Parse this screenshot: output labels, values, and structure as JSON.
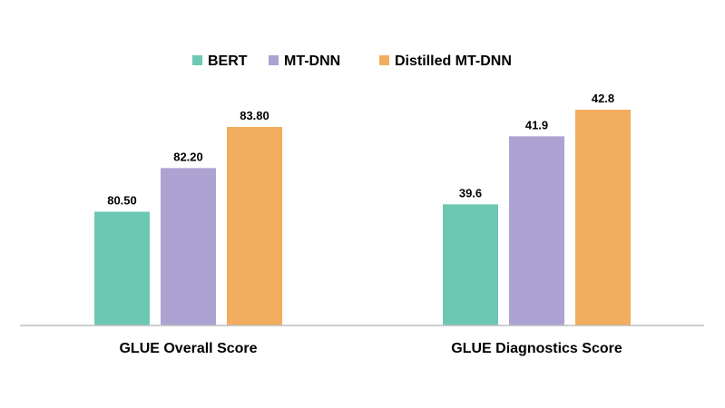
{
  "chart_data": {
    "type": "bar",
    "title": "",
    "xlabel": "",
    "ylabel": "",
    "categories": [
      "GLUE Overall Score",
      "GLUE Diagnostics Score"
    ],
    "series": [
      {
        "name": "BERT",
        "color": "#6dc8b3",
        "values": [
          80.5,
          39.6
        ],
        "labels": [
          "80.50",
          "39.6"
        ]
      },
      {
        "name": "MT-DNN",
        "color": "#ada3d2",
        "values": [
          82.2,
          41.9
        ],
        "labels": [
          "82.20",
          "41.9"
        ]
      },
      {
        "name": "Distilled MT-DNN",
        "color": "#f2ad5e",
        "values": [
          83.8,
          42.8
        ],
        "labels": [
          "83.80",
          "42.8"
        ]
      }
    ],
    "legend_position": "top-center",
    "grid": false,
    "axis_color": "#bfbfbf"
  }
}
